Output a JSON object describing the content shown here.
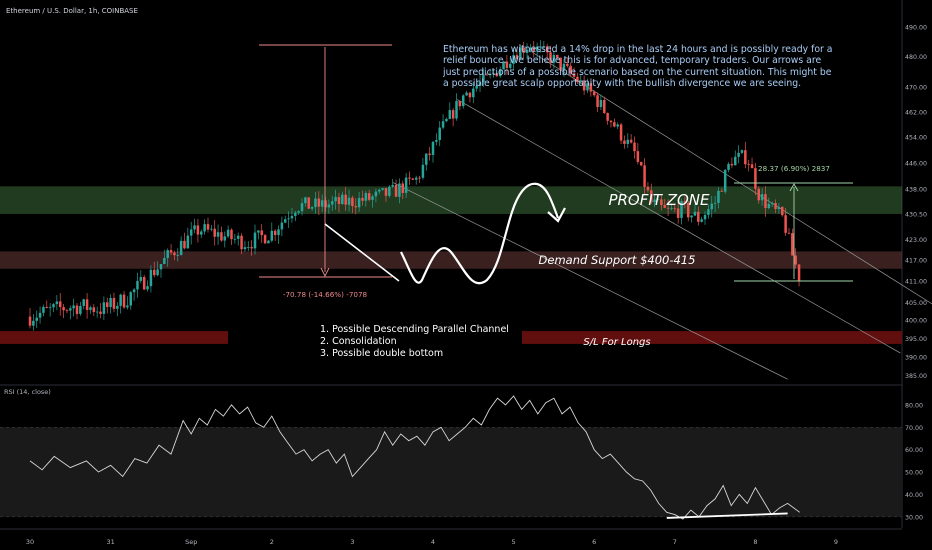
{
  "symbol": "Ethereum / U.S. Dollar, 1h, COINBASE",
  "rsi_label": "RSI (14, close)",
  "colors": {
    "bg": "#000000",
    "up": "#26a69a",
    "down": "#ef5350",
    "profit_zone": "#3d6b3a",
    "demand_zone": "#6b3a3a",
    "sl_zone": "#6b0f0f",
    "measure_down": "#f08a8a",
    "measure_up": "#a5d6a7",
    "annotation_text": "#a8cdf5",
    "rsi_line": "#d6d6d6"
  },
  "annotation": "Ethereum has witnessed a 14% drop in the last 24 hours and is possibly ready for a relief bounce. We believe this is for advanced, temporary traders. Our arrows are just predictions of a possible scenario based on the current situation. This might be a possible great scalp opportunity with the bullish divergence we are seeing.",
  "zones": {
    "profit": "PROFIT ZONE",
    "demand": "Demand Support $400-415",
    "sl": "S/L For Longs"
  },
  "measures": {
    "down": "-70.78 (-14.66%) -7078",
    "up": "28.37 (6.90%) 2837"
  },
  "notes": [
    "1. Possible Descending Parallel Channel",
    "2. Consolidation",
    "3. Possible double bottom"
  ],
  "chart_data": [
    {
      "type": "candlestick",
      "title": "Ethereum / U.S. Dollar, 1h, COINBASE",
      "x_ticks": [
        "30",
        "31",
        "Sep",
        "2",
        "3",
        "4",
        "5",
        "6",
        "7",
        "8",
        "9"
      ],
      "y_ticks": [
        385,
        390,
        395,
        400,
        405,
        411,
        417,
        423,
        430.5,
        438,
        446,
        454,
        462,
        470,
        480,
        490
      ],
      "ylim": [
        383,
        493
      ],
      "scale": "log",
      "price_path": [
        [
          0,
          401
        ],
        [
          0.3,
          403
        ],
        [
          0.6,
          404
        ],
        [
          0.9,
          403
        ],
        [
          1.2,
          406
        ],
        [
          1.5,
          413
        ],
        [
          1.8,
          420
        ],
        [
          2.1,
          426
        ],
        [
          2.4,
          424
        ],
        [
          2.7,
          422
        ],
        [
          3,
          425
        ],
        [
          3.3,
          433
        ],
        [
          3.6,
          433
        ],
        [
          3.9,
          434
        ],
        [
          4.2,
          435
        ],
        [
          4.5,
          437
        ],
        [
          4.8,
          441
        ],
        [
          5.1,
          456
        ],
        [
          5.4,
          468
        ],
        [
          5.7,
          473
        ],
        [
          6,
          481
        ],
        [
          6.2,
          484
        ],
        [
          6.5,
          479
        ],
        [
          6.8,
          472
        ],
        [
          7,
          467
        ],
        [
          7.3,
          456
        ],
        [
          7.5,
          449
        ],
        [
          7.7,
          434
        ],
        [
          7.9,
          431
        ],
        [
          8.1,
          432
        ],
        [
          8.3,
          429
        ],
        [
          8.5,
          434
        ],
        [
          8.7,
          447
        ],
        [
          8.9,
          448
        ],
        [
          9.05,
          436
        ],
        [
          9.2,
          432
        ],
        [
          9.35,
          429
        ],
        [
          9.45,
          419
        ],
        [
          9.55,
          412
        ]
      ]
    },
    {
      "type": "line",
      "title": "RSI (14, close)",
      "y_ticks": [
        30,
        40,
        50,
        60,
        70,
        80
      ],
      "ylim": [
        25,
        88
      ],
      "bands": [
        30,
        70
      ],
      "x_days": [
        0,
        0.15,
        0.3,
        0.5,
        0.7,
        0.85,
        1.0,
        1.15,
        1.3,
        1.45,
        1.6,
        1.75,
        1.9,
        2.0,
        2.1,
        2.2,
        2.3,
        2.4,
        2.5,
        2.6,
        2.7,
        2.8,
        2.9,
        3.0,
        3.1,
        3.2,
        3.3,
        3.4,
        3.5,
        3.6,
        3.7,
        3.8,
        3.9,
        4.0,
        4.1,
        4.2,
        4.3,
        4.4,
        4.5,
        4.6,
        4.7,
        4.8,
        4.9,
        5.0,
        5.1,
        5.2,
        5.3,
        5.4,
        5.5,
        5.6,
        5.7,
        5.8,
        5.9,
        6.0,
        6.1,
        6.2,
        6.3,
        6.4,
        6.5,
        6.6,
        6.7,
        6.8,
        6.9,
        7.0,
        7.1,
        7.2,
        7.3,
        7.4,
        7.5,
        7.6,
        7.7,
        7.8,
        7.9,
        8.0,
        8.1,
        8.2,
        8.3,
        8.4,
        8.5,
        8.6,
        8.7,
        8.8,
        8.9,
        9.0,
        9.1,
        9.2,
        9.3,
        9.4,
        9.55
      ],
      "values": [
        55,
        51,
        57,
        52,
        55,
        50,
        53,
        48,
        56,
        54,
        62,
        58,
        73,
        67,
        74,
        71,
        78,
        75,
        80,
        76,
        79,
        72,
        70,
        75,
        68,
        63,
        58,
        60,
        55,
        58,
        60,
        54,
        58,
        48,
        52,
        56,
        60,
        68,
        62,
        67,
        64,
        66,
        62,
        68,
        70,
        64,
        67,
        70,
        74,
        71,
        78,
        83,
        80,
        84,
        78,
        82,
        76,
        81,
        83,
        76,
        79,
        72,
        68,
        60,
        56,
        58,
        54,
        50,
        47,
        46,
        42,
        36,
        32,
        31,
        29,
        33,
        30,
        35,
        38,
        44,
        35,
        40,
        36,
        43,
        37,
        31,
        34,
        36,
        32
      ],
      "divergence_line": [
        [
          7.9,
          29.5
        ],
        [
          9.4,
          31.5
        ]
      ]
    }
  ]
}
